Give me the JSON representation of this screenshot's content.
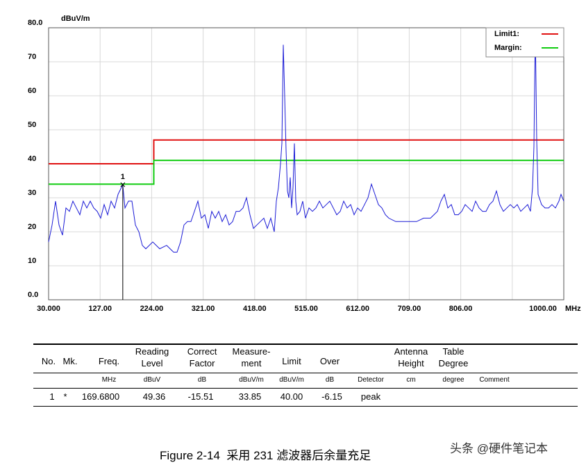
{
  "chart_data": {
    "type": "line",
    "y_unit": "dBuV/m",
    "x_unit": "MHz",
    "xlim": [
      30,
      1000
    ],
    "ylim": [
      0,
      80
    ],
    "xticks": [
      {
        "value": 30,
        "label": "30.000"
      },
      {
        "value": 127,
        "label": "127.00"
      },
      {
        "value": 224,
        "label": "224.00"
      },
      {
        "value": 321,
        "label": "321.00"
      },
      {
        "value": 418,
        "label": "418.00"
      },
      {
        "value": 515,
        "label": "515.00"
      },
      {
        "value": 612,
        "label": "612.00"
      },
      {
        "value": 709,
        "label": "709.00"
      },
      {
        "value": 806,
        "label": "806.00"
      },
      {
        "value": 903,
        "label": null
      },
      {
        "value": 1000,
        "label": "1000.00"
      }
    ],
    "yticks": [
      {
        "value": 0,
        "label": "0.0"
      },
      10,
      20,
      30,
      40,
      50,
      60,
      70,
      {
        "value": 80,
        "label": "80.0"
      }
    ],
    "grid": true,
    "legend": "upper right",
    "series": [
      {
        "color": "#1a1ad6",
        "x": [
          30,
          36.5,
          43.1,
          49.6,
          56.1,
          62.7,
          69.2,
          75.8,
          82.3,
          88.8,
          95.4,
          101.9,
          108.4,
          115.0,
          121.5,
          128.0,
          134.6,
          141.1,
          147.7,
          154.2,
          160.7,
          169.68,
          173.8,
          180.3,
          186.9,
          193.4,
          199.9,
          206.5,
          213.0,
          219.6,
          226.1,
          232.6,
          239.2,
          252.2,
          265.3,
          271.9,
          278.4,
          284.9,
          291.5,
          298.0,
          304.5,
          311.1,
          317.6,
          324.1,
          330.7,
          337.2,
          343.8,
          350.3,
          356.8,
          363.4,
          369.9,
          376.4,
          383.0,
          389.5,
          396.0,
          402.6,
          409.1,
          415.7,
          422.2,
          428.7,
          435.3,
          441.8,
          448.3,
          454.9,
          458.8,
          462.7,
          466.6,
          469.3,
          471.9,
          474.5,
          477.1,
          479.7,
          482.3,
          484.9,
          487.6,
          490.2,
          492.8,
          495.4,
          498.0,
          503.2,
          508.5,
          513.7,
          520.2,
          526.8,
          533.3,
          539.8,
          546.4,
          552.9,
          559.5,
          566.0,
          572.5,
          579.1,
          585.6,
          592.1,
          598.7,
          605.2,
          611.8,
          618.3,
          624.8,
          631.4,
          637.9,
          644.4,
          651.0,
          657.5,
          664.1,
          670.6,
          683.7,
          696.7,
          709.8,
          722.9,
          736.0,
          749.0,
          762.1,
          768.6,
          775.2,
          781.7,
          788.2,
          794.8,
          801.3,
          807.8,
          814.4,
          820.9,
          827.5,
          834.0,
          840.5,
          847.1,
          853.6,
          860.1,
          866.7,
          873.2,
          879.7,
          886.3,
          892.8,
          899.4,
          905.9,
          912.4,
          919.0,
          925.5,
          932.0,
          937.3,
          941.2,
          943.8,
          946.4,
          949.0,
          951.6,
          958.2,
          964.7,
          971.3,
          977.8,
          984.3,
          990.9,
          994.8,
          1000
        ],
        "values": [
          17,
          22,
          29,
          22,
          19,
          27,
          26,
          29,
          27,
          25,
          29,
          27,
          29,
          27,
          26,
          24,
          28,
          25,
          29,
          27,
          31,
          33.85,
          27,
          29,
          29,
          22,
          20,
          16,
          15,
          16,
          17,
          16,
          15,
          16,
          14,
          14,
          17,
          22,
          23,
          23,
          26,
          29,
          24,
          25,
          21,
          26,
          24,
          26,
          23,
          25,
          22,
          23,
          26,
          26,
          27,
          30,
          25,
          21,
          22,
          23,
          24,
          21,
          24,
          20,
          29,
          33,
          40,
          46,
          75,
          60,
          44,
          32,
          30,
          36,
          27,
          33,
          46,
          29,
          25,
          26,
          29,
          24,
          27,
          26,
          27,
          29,
          27,
          28,
          29,
          27,
          25,
          26,
          29,
          27,
          28,
          25,
          27,
          26,
          28,
          30,
          34,
          31,
          28,
          27,
          25,
          24,
          23,
          23,
          23,
          23,
          24,
          24,
          26,
          29,
          31,
          27,
          28,
          25,
          25,
          26,
          28,
          27,
          26,
          29,
          27,
          26,
          26,
          28,
          29,
          32,
          28,
          26,
          27,
          28,
          27,
          28,
          26,
          27,
          28,
          26,
          33,
          45,
          80,
          47,
          31,
          28,
          27,
          27,
          28,
          27,
          29,
          31,
          29
        ]
      },
      {
        "name": "Limit1:",
        "color": "#e01010",
        "x": [
          30,
          228,
          228,
          1000
        ],
        "values": [
          40,
          40,
          47,
          47
        ]
      },
      {
        "name": "Margin:",
        "color": "#10cc10",
        "x": [
          30,
          228,
          228,
          1000
        ],
        "values": [
          34,
          34,
          41,
          41
        ]
      }
    ],
    "marker": {
      "label": "1",
      "x": 169.68,
      "value": 33.85
    }
  },
  "table": {
    "columns": [
      {
        "header": [
          "No."
        ],
        "value": "1"
      },
      {
        "header": [
          "Mk."
        ],
        "value": "*"
      },
      {
        "header": [
          "Freq."
        ],
        "unit": "MHz",
        "value": "169.6800"
      },
      {
        "header": [
          "Reading",
          "Level"
        ],
        "unit": "dBuV",
        "value": "49.36"
      },
      {
        "header": [
          "Correct",
          "Factor"
        ],
        "unit": "dB",
        "value": "-15.51"
      },
      {
        "header": [
          "Measure-",
          "ment"
        ],
        "unit": "dBuV/m",
        "value": "33.85"
      },
      {
        "header": [
          "Limit"
        ],
        "unit": "dBuV/m",
        "value": "40.00"
      },
      {
        "header": [
          "Over"
        ],
        "unit": "dB",
        "value": "-6.15"
      },
      {
        "unit": "Detector",
        "value": "peak"
      },
      {
        "header": [
          "Antenna",
          "Height"
        ],
        "unit": "cm"
      },
      {
        "header": [
          "Table",
          "Degree"
        ],
        "unit": "degree"
      },
      {
        "unit": "Comment"
      }
    ]
  },
  "caption": "Figure 2-14  采用 231 滤波器后余量充足",
  "watermark": "头条 @硬件笔记本"
}
